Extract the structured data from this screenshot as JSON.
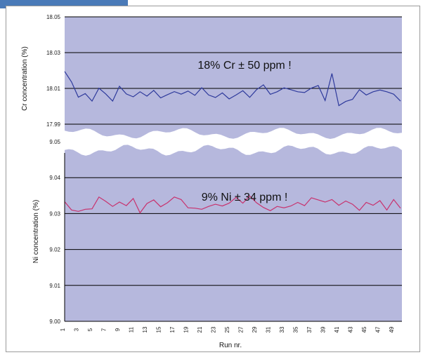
{
  "chart_data": [
    {
      "type": "line",
      "ylabel": "Cr concentration (%)",
      "yticks": [
        "18.05",
        "18.03",
        "18.01",
        "17.99"
      ],
      "annotation": "18% Cr ± 50 ppm !",
      "colors": {
        "plot_bg": "#b6b8dd",
        "line": "#2e3a9c",
        "grid": "#000000"
      },
      "x": [
        1,
        2,
        3,
        4,
        5,
        6,
        7,
        8,
        9,
        10,
        11,
        12,
        13,
        14,
        15,
        16,
        17,
        18,
        19,
        20,
        21,
        22,
        23,
        24,
        25,
        26,
        27,
        28,
        29,
        30,
        31,
        32,
        33,
        34,
        35,
        36,
        37,
        38,
        39,
        40,
        41,
        42,
        43,
        44,
        45,
        46,
        47,
        48,
        49,
        50
      ],
      "ylim": [
        17.99,
        18.05
      ],
      "series": [
        {
          "values": [
            18.0195,
            18.0136,
            18.0051,
            18.0071,
            18.0029,
            18.0101,
            18.0069,
            18.0029,
            18.0112,
            18.0069,
            18.0053,
            18.0081,
            18.0057,
            18.0089,
            18.0047,
            18.0065,
            18.0082,
            18.0068,
            18.0085,
            18.0061,
            18.0104,
            18.0063,
            18.0049,
            18.0075,
            18.0041,
            18.0063,
            18.0087,
            18.005,
            18.0093,
            18.012,
            18.0067,
            18.0081,
            18.0103,
            18.0093,
            18.0081,
            18.0077,
            18.0102,
            18.0116,
            18.0032,
            18.0183,
            18.0004,
            18.0027,
            18.0039,
            18.0093,
            18.0063,
            18.0081,
            18.0091,
            18.0081,
            18.0068,
            18.0029
          ]
        }
      ]
    },
    {
      "type": "line",
      "ylabel": "Ni concentration (%)",
      "yticks": [
        "9.05",
        "9.04",
        "9.03",
        "9.02",
        "9.01",
        "9.00"
      ],
      "annotation": "9% Ni ± 34 ppm !",
      "xlabel": "Run nr.",
      "colors": {
        "plot_bg": "#b6b8dd",
        "line": "#c8326e",
        "grid": "#000000"
      },
      "x": [
        1,
        2,
        3,
        4,
        5,
        6,
        7,
        8,
        9,
        10,
        11,
        12,
        13,
        14,
        15,
        16,
        17,
        18,
        19,
        20,
        21,
        22,
        23,
        24,
        25,
        26,
        27,
        28,
        29,
        30,
        31,
        32,
        33,
        34,
        35,
        36,
        37,
        38,
        39,
        40,
        41,
        42,
        43,
        44,
        45,
        46,
        47,
        48,
        49,
        50
      ],
      "xticks": [
        "1",
        "3",
        "5",
        "7",
        "9",
        "11",
        "13",
        "15",
        "17",
        "19",
        "21",
        "23",
        "25",
        "27",
        "29",
        "31",
        "33",
        "35",
        "37",
        "39",
        "41",
        "43",
        "45",
        "47",
        "49"
      ],
      "ylim": [
        9.0,
        9.05
      ],
      "series": [
        {
          "values": [
            9.0333,
            9.031,
            9.0306,
            9.0312,
            9.0313,
            9.0346,
            9.0334,
            9.032,
            9.0332,
            9.0322,
            9.0342,
            9.0302,
            9.0328,
            9.0338,
            9.0319,
            9.033,
            9.0346,
            9.0339,
            9.0316,
            9.0315,
            9.0312,
            9.032,
            9.0326,
            9.0321,
            9.0329,
            9.0345,
            9.0329,
            9.0349,
            9.033,
            9.0317,
            9.0308,
            9.032,
            9.0316,
            9.0321,
            9.0331,
            9.0322,
            9.0344,
            9.0338,
            9.0332,
            9.0339,
            9.0323,
            9.0335,
            9.0326,
            9.0309,
            9.0331,
            9.0323,
            9.0336,
            9.031,
            9.0339,
            9.0315
          ]
        }
      ]
    }
  ]
}
